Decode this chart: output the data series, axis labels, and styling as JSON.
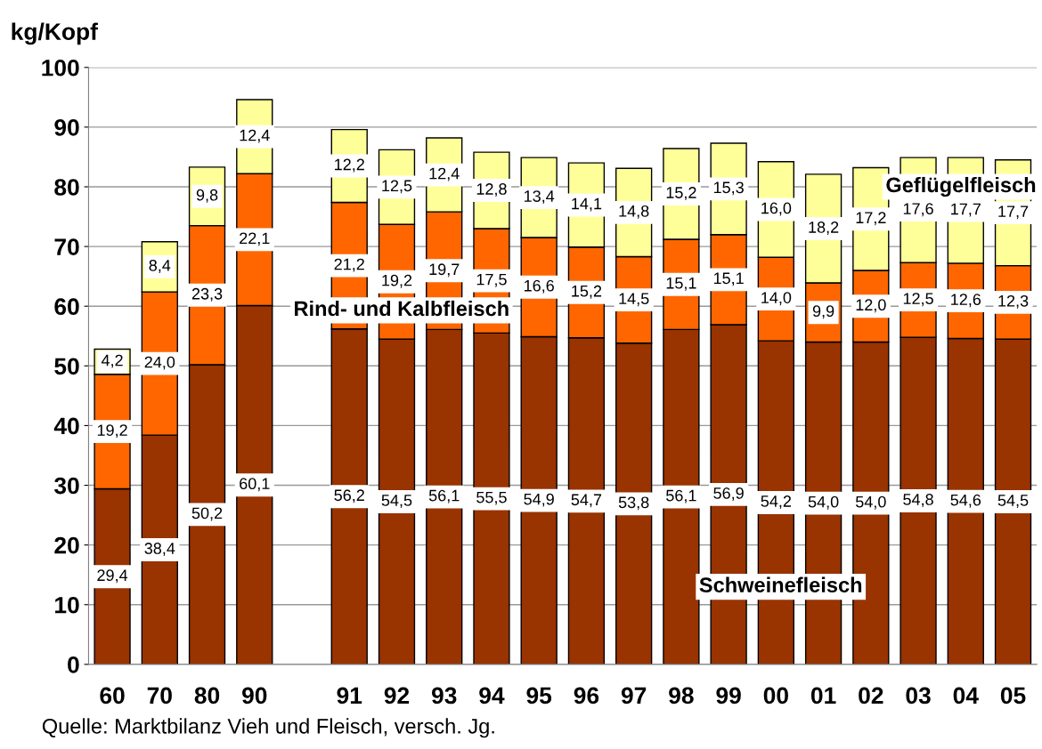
{
  "chart_data": {
    "type": "bar",
    "stacked": true,
    "ylabel": "kg/Kopf",
    "categories": [
      "60",
      "70",
      "80",
      "90",
      null,
      "91",
      "92",
      "93",
      "94",
      "95",
      "96",
      "97",
      "98",
      "99",
      "00",
      "01",
      "02",
      "03",
      "04",
      "05"
    ],
    "series": [
      {
        "name": "Schweinefleisch",
        "color": "#993300",
        "values": [
          29.4,
          38.4,
          50.2,
          60.1,
          null,
          56.2,
          54.5,
          56.1,
          55.5,
          54.9,
          54.7,
          53.8,
          56.1,
          56.9,
          54.2,
          54.0,
          54.0,
          54.8,
          54.6,
          54.5
        ],
        "value_labels": [
          "29,4",
          "38,4",
          "50,2",
          "60,1",
          null,
          "56,2",
          "54,5",
          "56,1",
          "55,5",
          "54,9",
          "54,7",
          "53,8",
          "56,1",
          "56,9",
          "54,2",
          "54,0",
          "54,0",
          "54,8",
          "54,6",
          "54,5"
        ]
      },
      {
        "name": "Rind- und Kalbfleisch",
        "color": "#ff6600",
        "values": [
          19.2,
          24.0,
          23.3,
          22.1,
          null,
          21.2,
          19.2,
          19.7,
          17.5,
          16.6,
          15.2,
          14.5,
          15.1,
          15.1,
          14.0,
          9.9,
          12.0,
          12.5,
          12.6,
          12.3
        ],
        "value_labels": [
          "19,2",
          "24,0",
          "23,3",
          "22,1",
          null,
          "21,2",
          "19,2",
          "19,7",
          "17,5",
          "16,6",
          "15,2",
          "14,5",
          "15,1",
          "15,1",
          "14,0",
          "9,9",
          "12,0",
          "12,5",
          "12,6",
          "12,3"
        ]
      },
      {
        "name": "Geflügelfleisch",
        "color": "#ffff99",
        "values": [
          4.2,
          8.4,
          9.8,
          12.4,
          null,
          12.2,
          12.5,
          12.4,
          12.8,
          13.4,
          14.1,
          14.8,
          15.2,
          15.3,
          16.0,
          18.2,
          17.2,
          17.6,
          17.7,
          17.7
        ],
        "value_labels": [
          "4,2",
          "8,4",
          "9,8",
          "12,4",
          null,
          "12,2",
          "12,5",
          "12,4",
          "12,8",
          "13,4",
          "14,1",
          "14,8",
          "15,2",
          "15,3",
          "16,0",
          "18,2",
          "17,2",
          "17,6",
          "17,7",
          "17,7"
        ]
      }
    ],
    "ylim": [
      0,
      100
    ],
    "yticks": [
      0,
      10,
      20,
      30,
      40,
      50,
      60,
      70,
      80,
      90,
      100
    ],
    "grid": "y",
    "legend": false,
    "annotations": [
      "Quelle: Marktbilanz Vieh und Fleisch, versch. Jg."
    ]
  }
}
